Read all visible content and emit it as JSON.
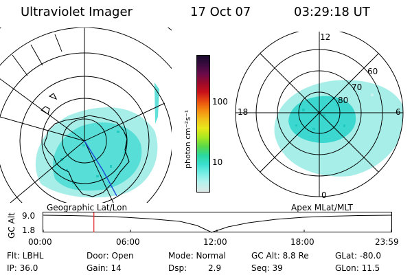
{
  "header": {
    "instrument": "Ultraviolet Imager",
    "date": "17 Oct 07",
    "time": "03:29:18 UT"
  },
  "colorbar": {
    "unit_label": "photon cm⁻²s⁻¹",
    "ticks": [
      "100",
      "10"
    ],
    "colors": [
      "#1a0b2e",
      "#3a0a3f",
      "#6a0a4a",
      "#9a0a2a",
      "#c8101a",
      "#e84a10",
      "#f58a10",
      "#f2c01a",
      "#e8e81a",
      "#a8e820",
      "#5ad84a",
      "#2ad8a0",
      "#3ce0d0",
      "#7aeee6",
      "#b8f2ee",
      "#dde8e6"
    ]
  },
  "polar_plot": {
    "radial_labels": [
      "80",
      "70",
      "60"
    ],
    "hour_labels": [
      "12",
      "18",
      "6",
      "0"
    ],
    "emission_color": "#3cd8d0",
    "emission_pale_color": "#a8eee8"
  },
  "geo_map": {
    "emission_color": "#3cd8d0",
    "track_color": "#1c4fd8",
    "coast_color": "#000000"
  },
  "timeline": {
    "y_axis_label": "GC Alt",
    "y_max": "9.0",
    "y_min": "1.8",
    "left_title": "Geographic Lat/Lon",
    "right_title": "Apex MLat/MLT",
    "time_ticks": [
      "00:00",
      "06:00",
      "12:00",
      "18:00",
      "23:59"
    ],
    "marker_time_hours": 3.49,
    "marker_color": "#e02020"
  },
  "status": {
    "flt": "Flt: LBHL",
    "door": "Door: Open",
    "mode": "Mode: Normal",
    "gc_alt": "GC Alt: 8.8 Re",
    "glat": "GLat: -80.0",
    "ip": "IP: 36.0",
    "gain": "Gain: 14",
    "dsp_label": "Dsp:",
    "dsp_value": "2.9",
    "seq": "Seq: 39",
    "glon": "GLon:  11.5"
  }
}
